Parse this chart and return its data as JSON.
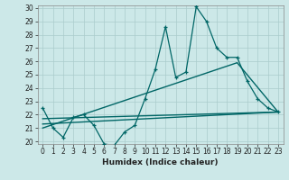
{
  "xlabel": "Humidex (Indice chaleur)",
  "bg_color": "#cce8e8",
  "grid_color": "#aacccc",
  "line_color": "#006666",
  "xlim": [
    -0.5,
    23.5
  ],
  "ylim": [
    19.8,
    30.2
  ],
  "xticks": [
    0,
    1,
    2,
    3,
    4,
    5,
    6,
    7,
    8,
    9,
    10,
    11,
    12,
    13,
    14,
    15,
    16,
    17,
    18,
    19,
    20,
    21,
    22,
    23
  ],
  "yticks": [
    20,
    21,
    22,
    23,
    24,
    25,
    26,
    27,
    28,
    29,
    30
  ],
  "main_x": [
    0,
    1,
    2,
    3,
    4,
    5,
    6,
    7,
    8,
    9,
    10,
    11,
    12,
    13,
    14,
    15,
    16,
    17,
    18,
    19,
    20,
    21,
    22,
    23
  ],
  "main_y": [
    22.5,
    21.0,
    20.3,
    21.8,
    22.0,
    21.2,
    19.8,
    19.7,
    20.7,
    21.2,
    23.2,
    25.4,
    28.6,
    24.8,
    25.2,
    30.1,
    29.0,
    27.0,
    26.3,
    26.3,
    24.5,
    23.2,
    22.5,
    22.2
  ],
  "line1_x": [
    0,
    23
  ],
  "line1_y": [
    21.3,
    22.2
  ],
  "line2_x": [
    0,
    19,
    23
  ],
  "line2_y": [
    21.0,
    25.9,
    22.2
  ],
  "line3_x": [
    0,
    23
  ],
  "line3_y": [
    21.7,
    22.2
  ],
  "tick_fontsize": 5.5,
  "xlabel_fontsize": 6.5
}
